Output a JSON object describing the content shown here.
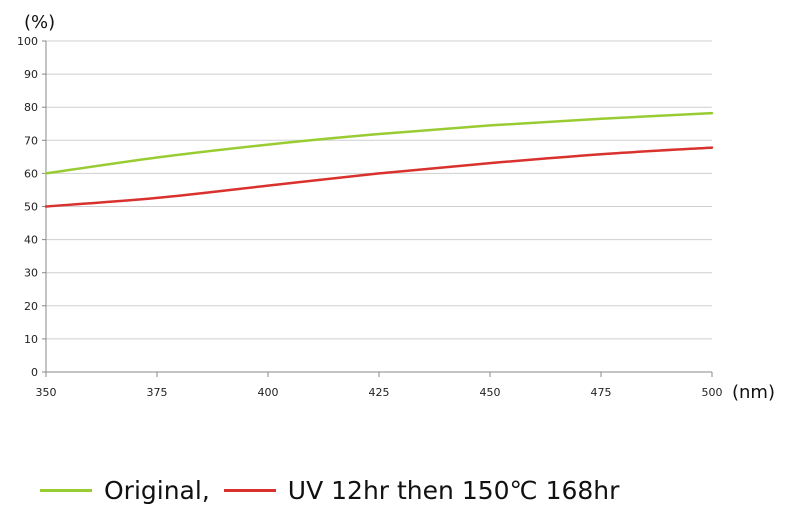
{
  "chart_data": {
    "type": "line",
    "ylabel": "(%)",
    "xlabel": "(nm)",
    "xlim": [
      350,
      500
    ],
    "ylim": [
      0,
      100
    ],
    "x_ticks": [
      350,
      375,
      400,
      425,
      450,
      475,
      500
    ],
    "y_ticks": [
      0,
      10,
      20,
      30,
      40,
      50,
      60,
      70,
      80,
      90,
      100
    ],
    "grid": true,
    "legend_position": "bottom",
    "series": [
      {
        "name": "Original,",
        "color": "#99CC33",
        "x": [
          350,
          375,
          400,
          425,
          450,
          475,
          500
        ],
        "y": [
          60,
          64.8,
          68.7,
          71.9,
          74.5,
          76.5,
          78.2
        ]
      },
      {
        "name": "UV 12hr then 150℃ 168hr",
        "color": "#D9322E",
        "x": [
          350,
          375,
          400,
          425,
          450,
          475,
          500
        ],
        "y": [
          50,
          52.6,
          56.3,
          60.0,
          63.1,
          65.8,
          67.8
        ]
      }
    ]
  }
}
